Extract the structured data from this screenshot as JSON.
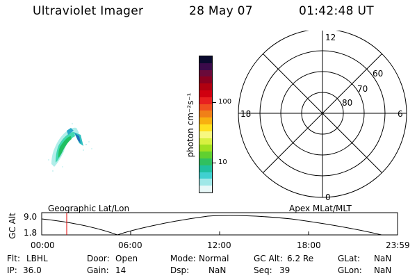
{
  "header": {
    "title": "Ultraviolet Imager",
    "date": "28 May 07",
    "time": "01:42:48 UT"
  },
  "colorbar": {
    "unit_label": "photon cm⁻²s⁻¹",
    "ticks": [
      "100",
      "10"
    ],
    "colors": [
      "#0a0a2e",
      "#3a0a4a",
      "#6a0a3a",
      "#8a0020",
      "#b00010",
      "#d00010",
      "#e82020",
      "#f05020",
      "#f08018",
      "#f8b010",
      "#ffe020",
      "#f8f880",
      "#d8f040",
      "#a0e020",
      "#60d030",
      "#30c060",
      "#20c0a0",
      "#40d0d0",
      "#a0e8e8",
      "#e8f8f8"
    ]
  },
  "polar": {
    "mlt_labels": {
      "top": "12",
      "left": "18",
      "right": "6",
      "bottom": "0"
    },
    "lat_labels": [
      "60",
      "70",
      "80"
    ]
  },
  "timeline": {
    "geo_label": "Geographic Lat/Lon",
    "apex_label": "Apex MLat/MLT",
    "axis_title": "GC Alt",
    "y_ticks": [
      "9.0",
      "1.8"
    ],
    "x_ticks": [
      "00:00",
      "06:00",
      "12:00",
      "18:00",
      "23:59"
    ],
    "marker_time": "01:42:48",
    "marker_color": "#e00000"
  },
  "status": {
    "rows": [
      [
        {
          "k": "Flt:",
          "v": "LBHL"
        },
        {
          "k": "Door:",
          "v": "Open"
        },
        {
          "k": "Mode:",
          "v": "Normal"
        },
        {
          "k": "GC Alt:",
          "v": "6.2 Re"
        },
        {
          "k": "GLat:",
          "v": "NaN"
        }
      ],
      [
        {
          "k": "IP:",
          "v": "36.0"
        },
        {
          "k": "Gain:",
          "v": "14"
        },
        {
          "k": "Dsp:",
          "v": "NaN"
        },
        {
          "k": "Seq:",
          "v": "39"
        },
        {
          "k": "GLon:",
          "v": "NaN"
        }
      ]
    ]
  }
}
